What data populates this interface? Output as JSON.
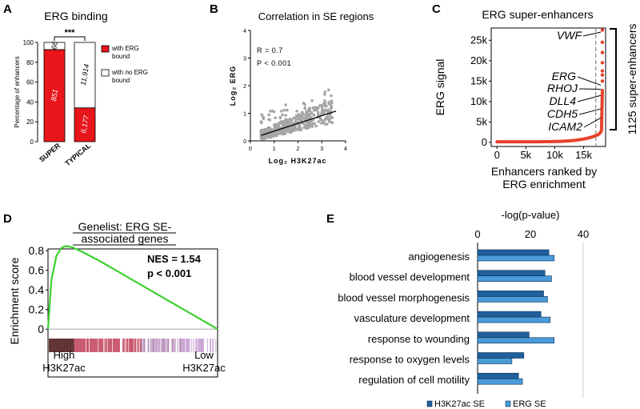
{
  "panels": {
    "A": "A",
    "B": "B",
    "C": "C",
    "D": "D",
    "E": "E"
  },
  "chart_data": [
    {
      "panel": "A",
      "type": "bar",
      "stacked": true,
      "title": "ERG binding",
      "ylabel": "Percentage of enhancers",
      "ylim": [
        0,
        100
      ],
      "yticks": [
        "0",
        "20",
        "40",
        "60",
        "80",
        "100"
      ],
      "categories": [
        "SUPER",
        "TYPICAL"
      ],
      "series": [
        {
          "name": "with ERG bound",
          "color": "#e8151b",
          "values": [
            92.8,
            34.1
          ],
          "labels": [
            "851",
            "6,177"
          ]
        },
        {
          "name": "with no ERG bound",
          "color": "#ffffff",
          "values": [
            7.2,
            65.9
          ],
          "labels": [
            "66",
            "11,914"
          ]
        }
      ],
      "legend": [
        {
          "line1": "with ERG",
          "line2": "bound"
        },
        {
          "line1": "with no ERG",
          "line2": "bound"
        }
      ],
      "significance": "***"
    },
    {
      "panel": "B",
      "type": "scatter",
      "title": "Correlation in SE regions",
      "xlabel": "Log₂ H3K27ac",
      "ylabel": "Log₂ ERG",
      "xlim": [
        0,
        4
      ],
      "ylim": [
        0,
        4
      ],
      "xticks": [
        "0",
        "1",
        "2",
        "3",
        "4"
      ],
      "yticks": [
        "0",
        "1",
        "2",
        "3",
        "4"
      ],
      "annotations": [
        "R = 0.7",
        "P < 0.001"
      ],
      "fit_line": {
        "x": [
          0.45,
          3.6
        ],
        "y": [
          0.2,
          1.08
        ]
      },
      "point_color": "#a6a6a6"
    },
    {
      "panel": "C",
      "type": "line",
      "title": "ERG super-enhancers",
      "xlabel_line1": "Enhancers ranked by",
      "xlabel_line2": "ERG enrichment",
      "ylabel": "ERG signal",
      "xlim": [
        -1000,
        18800
      ],
      "ylim": [
        -1000,
        28000
      ],
      "xticks": [
        {
          "v": 0,
          "label": "0"
        },
        {
          "v": 5000,
          "label": "5k"
        },
        {
          "v": 10000,
          "label": "10k"
        },
        {
          "v": 15000,
          "label": "15k"
        }
      ],
      "yticks": [
        {
          "v": 0,
          "label": "0"
        },
        {
          "v": 5000,
          "label": "5k"
        },
        {
          "v": 10000,
          "label": "10k"
        },
        {
          "v": 15000,
          "label": "15k"
        },
        {
          "v": 20000,
          "label": "20k"
        },
        {
          "v": 25000,
          "label": "25k"
        }
      ],
      "cutoff_rank": 17100,
      "max_rank": 18240,
      "super_enhancer_label": "1125 super-enhancers",
      "color": "#e6422a",
      "genes": [
        {
          "name": "VWF",
          "signal": 27000
        },
        {
          "name": "ERG",
          "signal": 14000
        },
        {
          "name": "RHOJ",
          "signal": 13000
        },
        {
          "name": "DLL4",
          "signal": 11500
        },
        {
          "name": "CDH5",
          "signal": 8200
        },
        {
          "name": "ICAM2",
          "signal": 6000
        }
      ]
    },
    {
      "panel": "D",
      "type": "line",
      "title_line1": "Genelist: ERG SE-",
      "title_line2": "associated genes",
      "ylabel": "Enrichment score",
      "ylim": [
        -0.08,
        0.9
      ],
      "yticks": [
        {
          "v": 0,
          "label": "0"
        },
        {
          "v": 0.2,
          "label": "0.2"
        },
        {
          "v": 0.4,
          "label": "0.4"
        },
        {
          "v": 0.6,
          "label": "0.6"
        },
        {
          "v": 0.8,
          "label": "0.8"
        }
      ],
      "curve": {
        "x": [
          0,
          0.02,
          0.05,
          0.08,
          0.1,
          0.12,
          0.15,
          0.2,
          0.3,
          0.4,
          0.5,
          0.6,
          0.7,
          0.8,
          0.9,
          1.0
        ],
        "y": [
          0,
          0.5,
          0.75,
          0.83,
          0.845,
          0.845,
          0.83,
          0.79,
          0.7,
          0.6,
          0.5,
          0.4,
          0.3,
          0.2,
          0.1,
          0.0
        ]
      },
      "nes": "NES = 1.54",
      "pval": "p < 0.001",
      "left_label_line1": "High",
      "left_label_line2": "H3K27ac",
      "right_label_line1": "Low",
      "right_label_line2": "H3K27ac",
      "color": "#3cd130"
    },
    {
      "panel": "E",
      "type": "bar",
      "orientation": "horizontal",
      "xlabel": "-log(p-value)",
      "xlim": [
        0,
        45
      ],
      "xticks": [
        {
          "v": 0,
          "label": "0"
        },
        {
          "v": 20,
          "label": "20"
        },
        {
          "v": 40,
          "label": "40"
        }
      ],
      "categories": [
        "angiogenesis",
        "blood vessel development",
        "blood vessel morphogenesis",
        "vasculature development",
        "response to wounding",
        "response to oxygen levels",
        "regulation of cell motility"
      ],
      "series": [
        {
          "name": "H3K27ac SE",
          "color": "#1f5f9c",
          "values": [
            27,
            25.5,
            25,
            24,
            19.5,
            17.5,
            15.5
          ]
        },
        {
          "name": "ERG SE",
          "color": "#4a9ad8",
          "values": [
            29,
            28,
            26.5,
            27.5,
            29,
            13,
            17
          ]
        }
      ]
    }
  ]
}
